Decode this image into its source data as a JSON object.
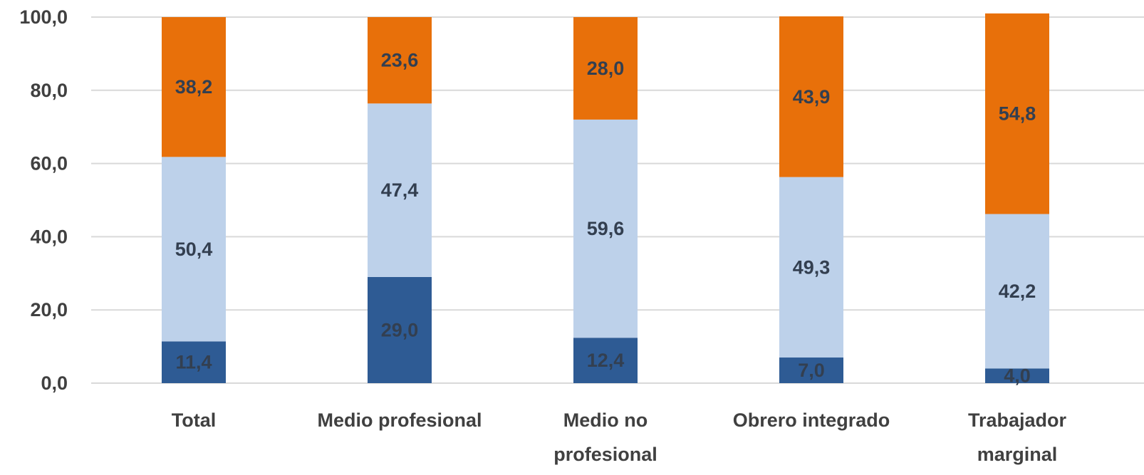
{
  "chart_data": {
    "type": "bar",
    "stacked": true,
    "categories": [
      [
        "Total"
      ],
      [
        "Medio profesional"
      ],
      [
        "Medio no",
        "profesional"
      ],
      [
        "Obrero integrado"
      ],
      [
        "Trabajador",
        "marginal"
      ]
    ],
    "series": [
      {
        "values": [
          11.4,
          29.0,
          12.4,
          7.0,
          4.0
        ],
        "labels": [
          "11,4",
          "29,0",
          "12,4",
          "7,0",
          "4,0"
        ],
        "color": "#2e5b94"
      },
      {
        "values": [
          50.4,
          47.4,
          59.6,
          49.3,
          42.2
        ],
        "labels": [
          "50,4",
          "47,4",
          "59,6",
          "49,3",
          "42,2"
        ],
        "color": "#bdd1ea"
      },
      {
        "values": [
          38.2,
          23.6,
          28.0,
          43.9,
          54.8
        ],
        "labels": [
          "38,2",
          "23,6",
          "28,0",
          "43,9",
          "54,8"
        ],
        "color": "#e8700a"
      }
    ],
    "ylim": [
      0,
      100
    ],
    "yticks": [
      0,
      20,
      40,
      60,
      80,
      100
    ],
    "ytick_labels": [
      "0,0",
      "20,0",
      "40,0",
      "60,0",
      "80,0",
      "100,0"
    ],
    "grid": true,
    "legend": "none"
  }
}
